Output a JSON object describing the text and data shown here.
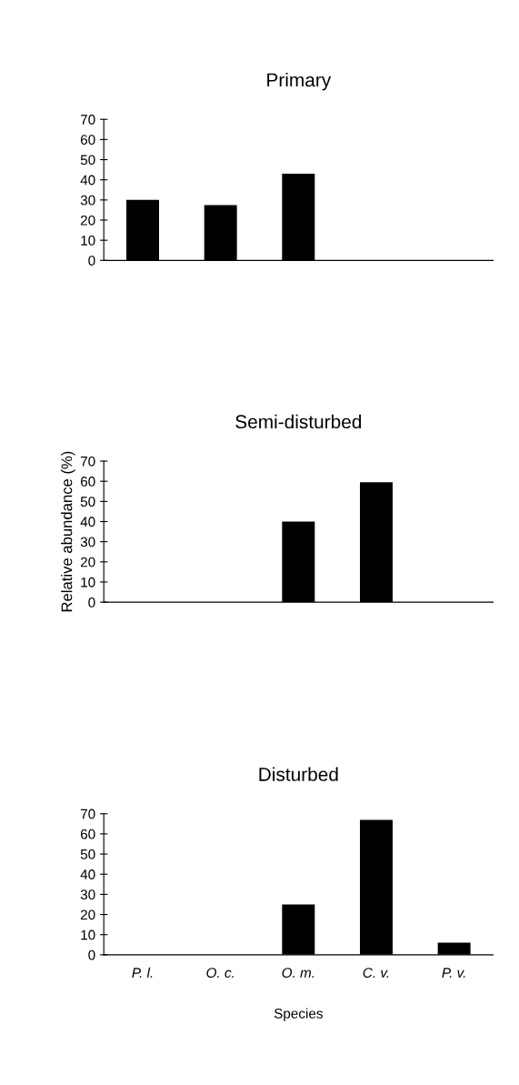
{
  "chart_data": [
    {
      "type": "bar",
      "title": "Primary",
      "categories": [
        null,
        null,
        null,
        null,
        null
      ],
      "values": [
        30,
        27.5,
        43,
        0,
        0
      ],
      "color": "#000000",
      "ylim": [
        0,
        70
      ],
      "yticks": [
        0,
        10,
        20,
        30,
        40,
        50,
        60,
        70
      ]
    },
    {
      "type": "bar",
      "title": "Semi-disturbed",
      "ylabel": "Relative abundance (%)",
      "categories": [
        null,
        null,
        null,
        null,
        null
      ],
      "values": [
        0,
        0,
        40,
        59.5,
        0
      ],
      "color": "#000000",
      "ylim": [
        0,
        70
      ],
      "yticks": [
        0,
        10,
        20,
        30,
        40,
        50,
        60,
        70
      ]
    },
    {
      "type": "bar",
      "title": "Disturbed",
      "xlabel": "Species",
      "categories": [
        "P. l.",
        "O. c.",
        "O. m.",
        "C. v.",
        "P. v."
      ],
      "values": [
        0,
        0,
        25,
        67,
        6
      ],
      "color": "#000000",
      "ylim": [
        0,
        70
      ],
      "yticks": [
        0,
        10,
        20,
        30,
        40,
        50,
        60,
        70
      ]
    }
  ]
}
